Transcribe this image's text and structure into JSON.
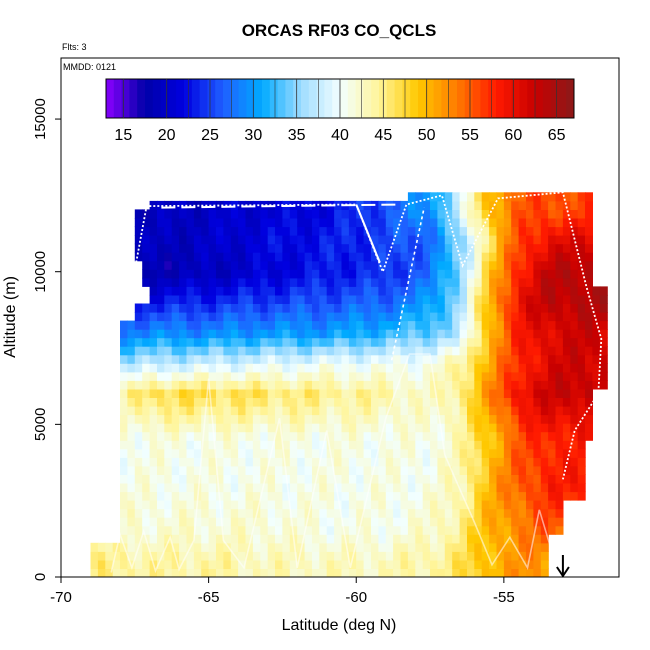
{
  "chart_data": {
    "type": "heatmap",
    "title": "ORCAS RF03 CO_QCLS",
    "subtitle_flights": "Flts: 3",
    "note_date": "MMDD: 0121",
    "xlabel": "Latitude (deg N)",
    "ylabel": "Altitude (m)",
    "xlim": [
      -70,
      -51.1
    ],
    "ylim": [
      0,
      17000
    ],
    "x_ticks": [
      -70,
      -65,
      -60,
      -55
    ],
    "x_tick_labels": [
      "-70",
      "-65",
      "-60",
      "-55"
    ],
    "y_ticks": [
      0,
      5000,
      10000,
      15000
    ],
    "y_tick_labels": [
      "0",
      "5000",
      "10000",
      "15000"
    ],
    "colorbar": {
      "min": 13,
      "max": 67,
      "ticks": [
        15,
        20,
        25,
        30,
        35,
        40,
        45,
        50,
        55,
        60,
        65
      ],
      "tick_labels": [
        "15",
        "20",
        "25",
        "30",
        "35",
        "40",
        "45",
        "50",
        "55",
        "60",
        "65"
      ],
      "colors": [
        "#8a00ff",
        "#0000a8",
        "#0000e0",
        "#1f5fff",
        "#00aaff",
        "#9fdcff",
        "#f2ffff",
        "#fff59a",
        "#ffc800",
        "#ff7b00",
        "#ff1a00",
        "#c80000",
        "#8b1a1a"
      ]
    },
    "field_description_points": {
      "lat_values": [
        -68.5,
        -67,
        -65,
        -63,
        -61,
        -59,
        -57.5,
        -56.5,
        -55.5,
        -54.5,
        -53.5,
        -52.5
      ],
      "altitude_bands_m": [
        500,
        1500,
        3000,
        4500,
        6000,
        7000,
        8000,
        9000,
        10000,
        11000,
        12000
      ],
      "values": [
        [
          45,
          44,
          44,
          43,
          43,
          43,
          44,
          46,
          50,
          52,
          52,
          53
        ],
        [
          42,
          42,
          42,
          42,
          41,
          41,
          42,
          45,
          50,
          53,
          55,
          55
        ],
        [
          41,
          41,
          41,
          41,
          41,
          41,
          41,
          43,
          50,
          55,
          58,
          58
        ],
        [
          41,
          41,
          41,
          41,
          41,
          41,
          41,
          43,
          49,
          55,
          58,
          58
        ],
        [
          41,
          47,
          47,
          46,
          45,
          44,
          42,
          45,
          52,
          60,
          62,
          63
        ],
        [
          36,
          37,
          38,
          39,
          40,
          40,
          41,
          44,
          51,
          57,
          61,
          62
        ],
        [
          28,
          29,
          29,
          30,
          30,
          32,
          34,
          36,
          50,
          58,
          61,
          62
        ],
        [
          24,
          23,
          24,
          25,
          26,
          27,
          30,
          36,
          50,
          60,
          63,
          64
        ],
        [
          21,
          18,
          19,
          21,
          23,
          24,
          27,
          35,
          48,
          58,
          63,
          64
        ],
        [
          21,
          19,
          20,
          22,
          23,
          25,
          27,
          34,
          46,
          56,
          60,
          61
        ],
        [
          16,
          19,
          20,
          21,
          22,
          26,
          30,
          38,
          50,
          55,
          56,
          56
        ]
      ]
    },
    "marker": {
      "type": "down-arrow",
      "lat": -53.0
    }
  }
}
